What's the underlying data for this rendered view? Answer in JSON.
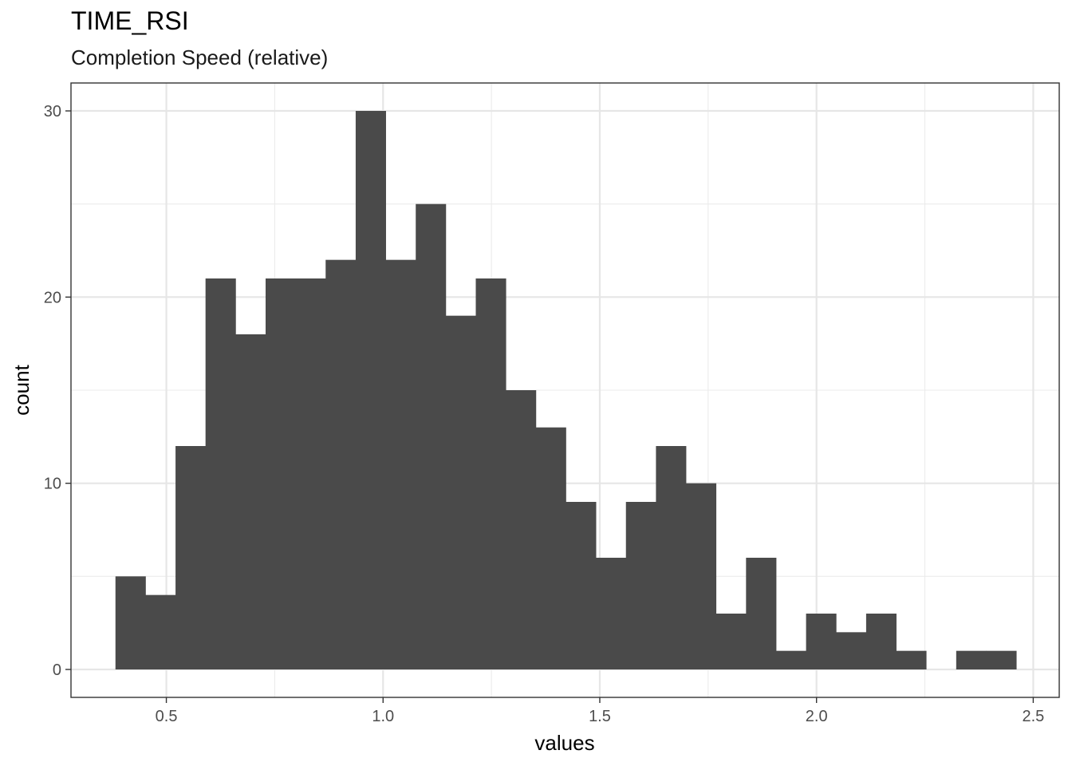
{
  "chart_data": {
    "type": "bar",
    "title": "TIME_RSI",
    "subtitle": "Completion Speed (relative)",
    "xlabel": "values",
    "ylabel": "count",
    "xlim": [
      0.28,
      2.56
    ],
    "ylim": [
      -1.5,
      31.5
    ],
    "xticks": [
      0.5,
      1.0,
      1.5,
      2.0,
      2.5
    ],
    "xtick_labels": [
      "0.5",
      "1.0",
      "1.5",
      "2.0",
      "2.5"
    ],
    "yticks": [
      0,
      10,
      20,
      30
    ],
    "ytick_labels": [
      "0",
      "10",
      "20",
      "30"
    ],
    "grid": true,
    "bar_color": "#4a4a4a",
    "bins": [
      {
        "x0": 0.3826,
        "x1": 0.4519,
        "count": 5
      },
      {
        "x0": 0.4519,
        "x1": 0.5212,
        "count": 4
      },
      {
        "x0": 0.5212,
        "x1": 0.5904,
        "count": 12
      },
      {
        "x0": 0.5904,
        "x1": 0.6597,
        "count": 21
      },
      {
        "x0": 0.6597,
        "x1": 0.729,
        "count": 18
      },
      {
        "x0": 0.729,
        "x1": 0.7983,
        "count": 21
      },
      {
        "x0": 0.7983,
        "x1": 0.8675,
        "count": 21
      },
      {
        "x0": 0.8675,
        "x1": 0.9368,
        "count": 22
      },
      {
        "x0": 0.9368,
        "x1": 1.0061,
        "count": 30
      },
      {
        "x0": 1.0061,
        "x1": 1.0754,
        "count": 22
      },
      {
        "x0": 1.0754,
        "x1": 1.1446,
        "count": 25
      },
      {
        "x0": 1.1446,
        "x1": 1.2139,
        "count": 19
      },
      {
        "x0": 1.2139,
        "x1": 1.2832,
        "count": 21
      },
      {
        "x0": 1.2832,
        "x1": 1.3525,
        "count": 15
      },
      {
        "x0": 1.3525,
        "x1": 1.4217,
        "count": 13
      },
      {
        "x0": 1.4217,
        "x1": 1.491,
        "count": 9
      },
      {
        "x0": 1.491,
        "x1": 1.5603,
        "count": 6
      },
      {
        "x0": 1.5603,
        "x1": 1.6296,
        "count": 9
      },
      {
        "x0": 1.6296,
        "x1": 1.6988,
        "count": 12
      },
      {
        "x0": 1.6988,
        "x1": 1.7681,
        "count": 10
      },
      {
        "x0": 1.7681,
        "x1": 1.8374,
        "count": 3
      },
      {
        "x0": 1.8374,
        "x1": 1.9067,
        "count": 6
      },
      {
        "x0": 1.9067,
        "x1": 1.9759,
        "count": 1
      },
      {
        "x0": 1.9759,
        "x1": 2.0452,
        "count": 3
      },
      {
        "x0": 2.0452,
        "x1": 2.1145,
        "count": 2
      },
      {
        "x0": 2.1145,
        "x1": 2.1838,
        "count": 3
      },
      {
        "x0": 2.1838,
        "x1": 2.253,
        "count": 1
      },
      {
        "x0": 2.253,
        "x1": 2.3223,
        "count": 0
      },
      {
        "x0": 2.3223,
        "x1": 2.3916,
        "count": 1
      },
      {
        "x0": 2.3916,
        "x1": 2.4609,
        "count": 1
      }
    ]
  }
}
